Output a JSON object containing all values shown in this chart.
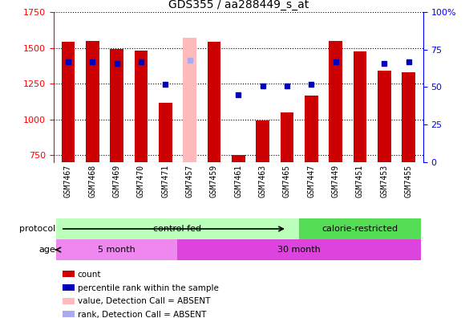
{
  "title": "GDS355 / aa288449_s_at",
  "samples": [
    "GSM7467",
    "GSM7468",
    "GSM7469",
    "GSM7470",
    "GSM7471",
    "GSM7457",
    "GSM7459",
    "GSM7461",
    "GSM7463",
    "GSM7465",
    "GSM7447",
    "GSM7449",
    "GSM7451",
    "GSM7453",
    "GSM7455"
  ],
  "counts": [
    1543,
    1548,
    1490,
    1480,
    1118,
    1570,
    1543,
    748,
    992,
    1050,
    1168,
    1549,
    1475,
    1340,
    1330
  ],
  "absent_flags": [
    false,
    false,
    false,
    false,
    false,
    true,
    false,
    false,
    false,
    false,
    false,
    false,
    false,
    false,
    false
  ],
  "percentile_ranks": [
    67,
    67,
    66,
    67,
    52,
    68,
    null,
    45,
    51,
    51,
    52,
    67,
    null,
    66,
    67
  ],
  "absent_ranks": [
    null,
    null,
    null,
    null,
    null,
    68,
    null,
    null,
    null,
    null,
    null,
    null,
    null,
    null,
    null
  ],
  "ylim_left": [
    700,
    1750
  ],
  "ylim_right": [
    0,
    100
  ],
  "yticks_left": [
    750,
    1000,
    1250,
    1500,
    1750
  ],
  "yticks_right": [
    0,
    25,
    50,
    75,
    100
  ],
  "bar_color_normal": "#cc0000",
  "bar_color_absent": "#ffbbbb",
  "dot_color_normal": "#0000bb",
  "dot_color_absent": "#aaaaee",
  "bg_color": "#ffffff",
  "xticklabel_bg": "#cccccc",
  "protocol_groups": [
    {
      "label": "control fed",
      "start": 0,
      "end": 10,
      "color": "#bbffbb"
    },
    {
      "label": "calorie-restricted",
      "start": 10,
      "end": 15,
      "color": "#55dd55"
    }
  ],
  "age_groups": [
    {
      "label": "5 month",
      "start": 0,
      "end": 5,
      "color": "#ee88ee"
    },
    {
      "label": "30 month",
      "start": 5,
      "end": 15,
      "color": "#dd44dd"
    }
  ],
  "legend_items": [
    {
      "label": "count",
      "color": "#cc0000"
    },
    {
      "label": "percentile rank within the sample",
      "color": "#0000bb"
    },
    {
      "label": "value, Detection Call = ABSENT",
      "color": "#ffbbbb"
    },
    {
      "label": "rank, Detection Call = ABSENT",
      "color": "#aaaaee"
    }
  ]
}
